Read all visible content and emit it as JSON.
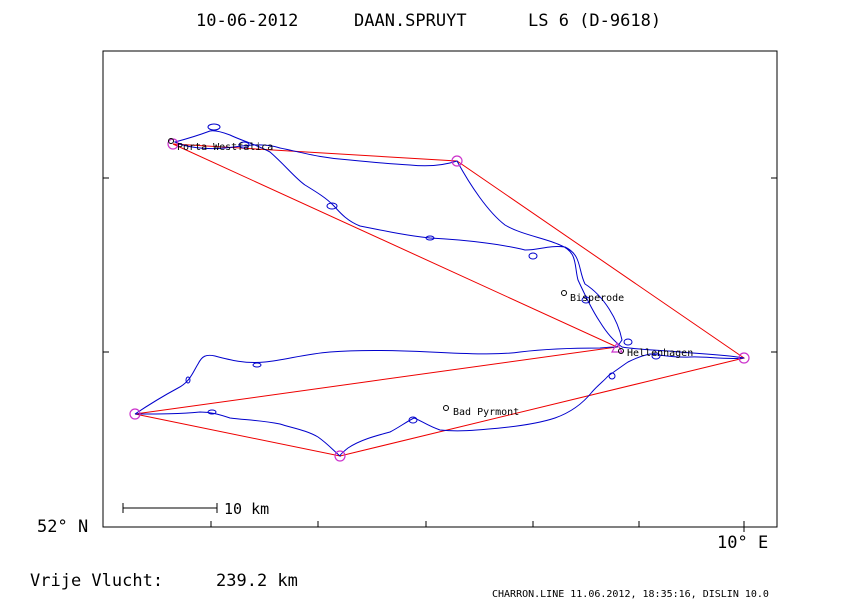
{
  "title": {
    "date": "10-06-2012",
    "pilot": "DAAN.SPRUYT",
    "glider": "LS 6 (D-9618)"
  },
  "axes": {
    "lat_label": "52° N",
    "lon_label": "10° E"
  },
  "scale_bar_label": "10 km",
  "distance": {
    "label": "Vrije Vlucht:",
    "value": "239.2 km"
  },
  "footer": "CHARRON.LINE 11.06.2012, 18:35:16, DISLIN 10.0",
  "places": [
    {
      "id": "porta-westfalica",
      "name": "Porta Westfalica"
    },
    {
      "id": "bisperode",
      "name": "Bisperode"
    },
    {
      "id": "hellenhagen",
      "name": "Hellenhagen"
    },
    {
      "id": "bad-pyrmont",
      "name": "Bad Pyrmont"
    }
  ],
  "colors": {
    "track": "#0000cc",
    "task": "#ee0000",
    "turnpoint": "#cc33cc",
    "text": "#000000"
  }
}
